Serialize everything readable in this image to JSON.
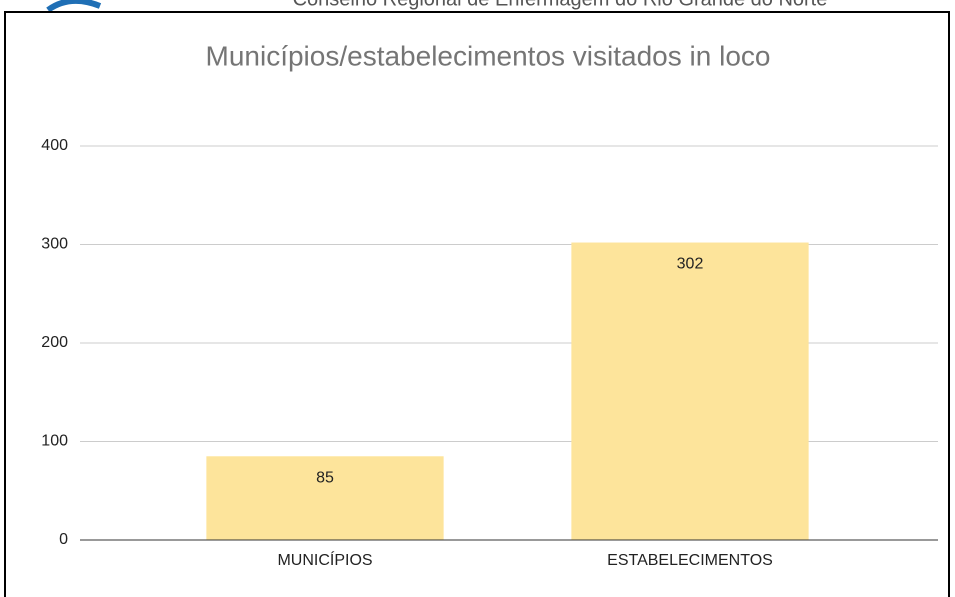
{
  "header": {
    "text": "Conselho Regional de Enfermagem do Rio Grande do Norte"
  },
  "chart_data": {
    "type": "bar",
    "title": "Municípios/estabelecimentos visitados in loco",
    "categories": [
      "MUNICÍPIOS",
      "ESTABELECIMENTOS"
    ],
    "values": [
      85,
      302
    ],
    "color": "#fde49b",
    "ylim": [
      0,
      400
    ],
    "yticks": [
      0,
      100,
      200,
      300,
      400
    ],
    "grid": true
  }
}
